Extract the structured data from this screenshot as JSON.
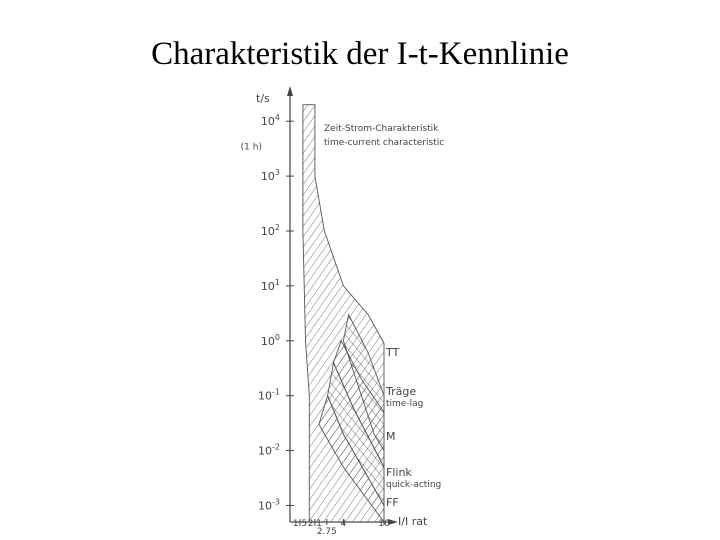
{
  "slide": {
    "title": "Charakteristik der I-t-Kennlinie"
  },
  "chart_data": {
    "type": "area",
    "ylabel": "t/s",
    "xlabel": "I/I rat",
    "y_scale": "log",
    "ylim": [
      0.0005,
      30000
    ],
    "y_ticks": [
      {
        "value": 10000,
        "label": "10^4"
      },
      {
        "value": 1000,
        "label": "10^3"
      },
      {
        "value": 100,
        "label": "10^2"
      },
      {
        "value": 10,
        "label": "10^1"
      },
      {
        "value": 1,
        "label": "10^0"
      },
      {
        "value": 0.1,
        "label": "10^-1"
      },
      {
        "value": 0.01,
        "label": "10^-2"
      },
      {
        "value": 0.001,
        "label": "10^-3"
      }
    ],
    "y_extra_label": {
      "value": 3600,
      "label": "(1 h)"
    },
    "x_ticks": [
      {
        "value": 1.5,
        "label": "1.5"
      },
      {
        "value": 2.1,
        "label": "2.1"
      },
      {
        "value": 2.75,
        "label": "2.75"
      },
      {
        "value": 4,
        "label": "4"
      },
      {
        "value": 10,
        "label": "10"
      }
    ],
    "band_label": [
      "Zeit-Strom-Charakteristik",
      "time-current characteristic"
    ],
    "series": [
      {
        "name": "TT",
        "labels": [
          "TT"
        ],
        "left": [
          [
            1.6,
            20000
          ],
          [
            1.6,
            100
          ],
          [
            1.7,
            1
          ],
          [
            1.85,
            0.1
          ],
          [
            1.85,
            0.001
          ],
          [
            1.85,
            0.0005
          ]
        ],
        "right": [
          [
            2.1,
            20000
          ],
          [
            2.1,
            1000
          ],
          [
            2.6,
            100
          ],
          [
            4,
            10
          ],
          [
            7,
            3
          ],
          [
            10,
            0.9
          ],
          [
            10,
            0.0005
          ]
        ]
      },
      {
        "name": "T",
        "labels": [
          "Träge",
          "time-lag"
        ],
        "left": [
          [
            4,
            1
          ],
          [
            6,
            0.1
          ],
          [
            8,
            0.02
          ],
          [
            10,
            0.01
          ]
        ],
        "right": [
          [
            4.5,
            3
          ],
          [
            7,
            0.6
          ],
          [
            10,
            0.1
          ]
        ]
      },
      {
        "name": "M",
        "labels": [
          "M"
        ],
        "left": [
          [
            3.2,
            0.4
          ],
          [
            5,
            0.06
          ],
          [
            10,
            0.005
          ]
        ],
        "right": [
          [
            3.8,
            1
          ],
          [
            6,
            0.2
          ],
          [
            10,
            0.05
          ]
        ]
      },
      {
        "name": "F",
        "labels": [
          "Flink",
          "quick-acting"
        ],
        "left": [
          [
            2.8,
            0.1
          ],
          [
            4,
            0.02
          ],
          [
            10,
            0.001
          ]
        ],
        "right": [
          [
            3.2,
            0.4
          ],
          [
            5,
            0.06
          ],
          [
            10,
            0.005
          ]
        ]
      },
      {
        "name": "FF",
        "labels": [
          "FF"
        ],
        "left": [
          [
            2.3,
            0.03
          ],
          [
            4,
            0.005
          ],
          [
            10,
            0.0005
          ]
        ],
        "right": [
          [
            2.8,
            0.1
          ],
          [
            4,
            0.02
          ],
          [
            10,
            0.001
          ]
        ]
      }
    ]
  }
}
